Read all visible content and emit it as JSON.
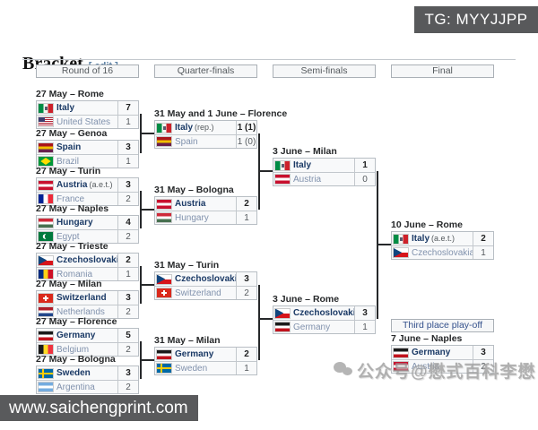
{
  "watermarks": {
    "tg": "TG: MYYJJPP",
    "url": "www.saichengprint.com",
    "wechat": "公众号@懋式百科李懋"
  },
  "header": {
    "title": "Bracket",
    "edit_label": "[ edit ]"
  },
  "rounds": {
    "0": "Round of 16",
    "1": "Quarter-finals",
    "2": "Semi-finals",
    "3": "Final"
  },
  "third_place_label": "Third place play-off",
  "colors": {
    "winner_text": "#1b3a66",
    "loser_text": "#8192ad",
    "connector": "#26282a",
    "cell_bg": "#f8f9fa",
    "watermark_bg": "#58595b"
  },
  "matches": {
    "r16": [
      {
        "date": "27 May – Rome",
        "home": {
          "name": "Italy",
          "flag": "italy",
          "score": "7",
          "winner": true
        },
        "away": {
          "name": "United States",
          "flag": "usa",
          "score": "1"
        }
      },
      {
        "date": "27 May – Genoa",
        "home": {
          "name": "Spain",
          "flag": "spain",
          "score": "3",
          "winner": true
        },
        "away": {
          "name": "Brazil",
          "flag": "brazil",
          "score": "1"
        }
      },
      {
        "date": "27 May – Turin",
        "home": {
          "name": "Austria",
          "note": "(a.e.t.)",
          "flag": "austria",
          "score": "3",
          "winner": true
        },
        "away": {
          "name": "France",
          "flag": "france",
          "score": "2"
        }
      },
      {
        "date": "27 May – Naples",
        "home": {
          "name": "Hungary",
          "flag": "hungary",
          "score": "4",
          "winner": true
        },
        "away": {
          "name": "Egypt",
          "flag": "egypt",
          "score": "2"
        }
      },
      {
        "date": "27 May – Trieste",
        "home": {
          "name": "Czechoslovakia",
          "flag": "czechoslovakia",
          "score": "2",
          "winner": true
        },
        "away": {
          "name": "Romania",
          "flag": "romania",
          "score": "1"
        }
      },
      {
        "date": "27 May – Milan",
        "home": {
          "name": "Switzerland",
          "flag": "switzerland",
          "score": "3",
          "winner": true
        },
        "away": {
          "name": "Netherlands",
          "flag": "netherlands",
          "score": "2"
        }
      },
      {
        "date": "27 May – Florence",
        "home": {
          "name": "Germany",
          "flag": "germany",
          "score": "5",
          "winner": true
        },
        "away": {
          "name": "Belgium",
          "flag": "belgium",
          "score": "2"
        }
      },
      {
        "date": "27 May – Bologna",
        "home": {
          "name": "Sweden",
          "flag": "sweden",
          "score": "3",
          "winner": true
        },
        "away": {
          "name": "Argentina",
          "flag": "argentina",
          "score": "2"
        }
      }
    ],
    "qf": [
      {
        "date": "31 May and 1 June – Florence",
        "home": {
          "name": "Italy",
          "note": "(rep.)",
          "flag": "italy",
          "score": "1 (1)",
          "winner": true
        },
        "away": {
          "name": "Spain",
          "flag": "spain",
          "score": "1 (0)"
        }
      },
      {
        "date": "31 May – Bologna",
        "home": {
          "name": "Austria",
          "flag": "austria",
          "score": "2",
          "winner": true
        },
        "away": {
          "name": "Hungary",
          "flag": "hungary",
          "score": "1"
        }
      },
      {
        "date": "31 May – Turin",
        "home": {
          "name": "Czechoslovakia",
          "flag": "czechoslovakia",
          "score": "3",
          "winner": true
        },
        "away": {
          "name": "Switzerland",
          "flag": "switzerland",
          "score": "2"
        }
      },
      {
        "date": "31 May – Milan",
        "home": {
          "name": "Germany",
          "flag": "germany",
          "score": "2",
          "winner": true
        },
        "away": {
          "name": "Sweden",
          "flag": "sweden",
          "score": "1"
        }
      }
    ],
    "sf": [
      {
        "date": "3 June – Milan",
        "home": {
          "name": "Italy",
          "flag": "italy",
          "score": "1",
          "winner": true
        },
        "away": {
          "name": "Austria",
          "flag": "austria",
          "score": "0"
        }
      },
      {
        "date": "3 June – Rome",
        "home": {
          "name": "Czechoslovakia",
          "flag": "czechoslovakia",
          "score": "3",
          "winner": true
        },
        "away": {
          "name": "Germany",
          "flag": "germany",
          "score": "1"
        }
      }
    ],
    "final": [
      {
        "date": "10 June – Rome",
        "home": {
          "name": "Italy",
          "note": "(a.e.t.)",
          "flag": "italy",
          "score": "2",
          "winner": true
        },
        "away": {
          "name": "Czechoslovakia",
          "flag": "czechoslovakia",
          "score": "1"
        }
      }
    ],
    "third": [
      {
        "date": "7 June – Naples",
        "home": {
          "name": "Germany",
          "flag": "germany",
          "score": "3",
          "winner": true
        },
        "away": {
          "name": "Austria",
          "flag": "austria",
          "score": "2"
        }
      }
    ]
  }
}
